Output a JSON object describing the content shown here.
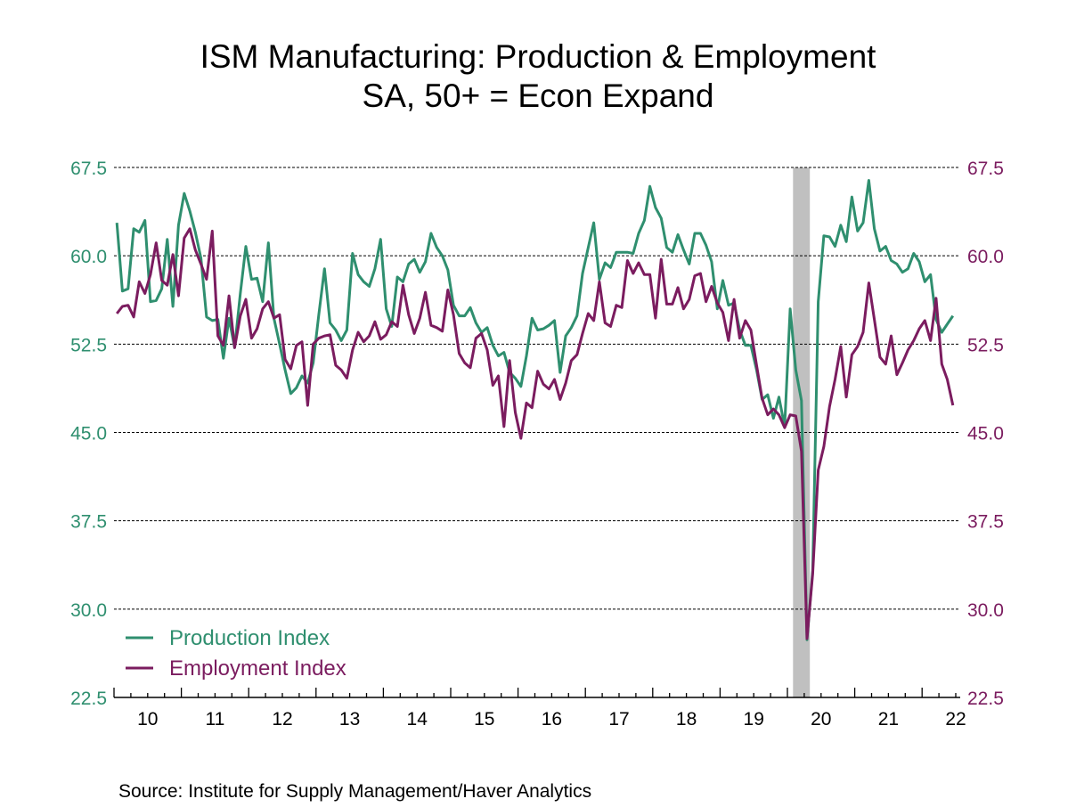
{
  "chart_data": {
    "type": "line",
    "title": "ISM Manufacturing: Production & Employment",
    "subtitle": "SA, 50+ = Econ Expand",
    "source": "Source:  Institute for Supply Management/Haver Analytics",
    "frequency": "monthly",
    "x_start": "2010-01",
    "x_end": "2022-06",
    "x_tick_labels": [
      "10",
      "11",
      "12",
      "13",
      "14",
      "15",
      "16",
      "17",
      "18",
      "19",
      "20",
      "21",
      "22"
    ],
    "ylim": [
      22.5,
      67.5
    ],
    "y_ticks": [
      "22.5",
      "30.0",
      "37.5",
      "45.0",
      "52.5",
      "60.0",
      "67.5"
    ],
    "grid": "horizontal dashed",
    "dual_axis": true,
    "legend_placement": "bottom-left",
    "recession_shading": {
      "start": "2020-02",
      "end": "2020-04",
      "color": "#c0c0c0"
    },
    "series": [
      {
        "name": "Production Index",
        "axis": "left",
        "color": "#2f8f6f",
        "values": [
          62.8,
          57.0,
          57.2,
          62.3,
          62.0,
          63.0,
          56.1,
          56.2,
          57.2,
          61.4,
          55.7,
          62.6,
          65.3,
          63.8,
          62.0,
          59.8,
          54.8,
          54.5,
          54.6,
          51.3,
          54.7,
          52.2,
          56.8,
          60.8,
          58.0,
          58.1,
          56.1,
          61.1,
          54.7,
          52.5,
          50.3,
          48.3,
          48.8,
          49.8,
          49.2,
          50.9,
          55.0,
          58.9,
          54.3,
          53.7,
          52.8,
          53.7,
          60.2,
          58.4,
          57.8,
          57.4,
          58.9,
          61.4,
          55.5,
          54.0,
          58.2,
          57.8,
          59.3,
          59.7,
          58.6,
          59.5,
          61.9,
          60.7,
          60.0,
          58.8,
          55.8,
          54.9,
          54.9,
          55.6,
          54.3,
          53.5,
          53.9,
          52.4,
          51.5,
          51.8,
          50.1,
          49.6,
          48.9,
          51.5,
          54.7,
          53.7,
          53.8,
          54.1,
          54.5,
          50.1,
          53.2,
          53.9,
          54.9,
          58.5,
          60.7,
          62.8,
          58.0,
          59.4,
          59.0,
          60.3,
          60.3,
          60.3,
          60.2,
          61.9,
          63.0,
          65.9,
          64.1,
          63.2,
          60.7,
          60.3,
          61.8,
          60.5,
          59.3,
          61.9,
          61.9,
          60.9,
          59.5,
          55.5,
          57.9,
          55.8,
          56.0,
          53.7,
          52.4,
          52.4,
          50.3,
          47.8,
          48.2,
          46.2,
          48.0,
          45.5,
          55.5,
          50.3,
          47.7,
          27.4,
          33.3,
          56.1,
          61.7,
          61.6,
          60.8,
          62.6,
          61.2,
          65.0,
          62.1,
          62.8,
          66.4,
          62.3,
          60.4,
          60.8,
          59.6,
          59.3,
          58.6,
          58.9,
          60.2,
          59.5,
          57.8,
          58.4,
          54.6,
          53.5,
          54.2,
          54.9
        ]
      },
      {
        "name": "Employment Index",
        "axis": "right",
        "color": "#7b1c5f",
        "values": [
          55.1,
          55.7,
          55.8,
          54.8,
          57.8,
          56.8,
          58.4,
          61.1,
          57.9,
          57.5,
          60.1,
          56.6,
          61.5,
          62.3,
          60.5,
          59.3,
          58.0,
          62.1,
          53.2,
          52.4,
          56.6,
          52.2,
          54.9,
          56.3,
          53.0,
          53.8,
          55.5,
          56.1,
          54.7,
          55.0,
          51.2,
          50.4,
          52.4,
          52.7,
          47.3,
          52.5,
          53.0,
          53.2,
          53.3,
          50.7,
          50.3,
          49.6,
          52.0,
          53.5,
          52.7,
          53.2,
          54.4,
          52.9,
          53.3,
          54.4,
          54.0,
          57.5,
          55.0,
          53.4,
          54.7,
          56.9,
          54.1,
          53.9,
          53.6,
          57.1,
          55.0,
          51.7,
          50.9,
          50.5,
          53.0,
          53.4,
          52.0,
          49.0,
          49.8,
          45.5,
          51.1,
          46.7,
          44.5,
          47.5,
          47.1,
          50.2,
          49.1,
          48.7,
          49.5,
          47.8,
          49.2,
          51.1,
          51.6,
          53.4,
          55.1,
          54.5,
          57.8,
          54.3,
          54.0,
          55.8,
          55.6,
          59.6,
          58.5,
          59.4,
          58.4,
          58.4,
          54.7,
          59.7,
          55.9,
          55.9,
          57.3,
          55.5,
          56.3,
          58.3,
          58.5,
          56.1,
          57.4,
          56.0,
          55.2,
          52.8,
          56.3,
          53.0,
          54.5,
          53.7,
          50.7,
          47.9,
          46.5,
          47.0,
          46.5,
          45.4,
          46.5,
          46.4,
          43.4,
          27.5,
          33.0,
          41.8,
          43.8,
          47.2,
          49.5,
          52.3,
          48.0,
          51.6,
          52.3,
          53.5,
          57.7,
          54.6,
          51.4,
          50.8,
          53.2,
          49.9,
          50.9,
          52.0,
          52.8,
          53.8,
          54.5,
          52.8,
          56.4,
          50.8,
          49.5,
          47.3
        ]
      }
    ]
  }
}
